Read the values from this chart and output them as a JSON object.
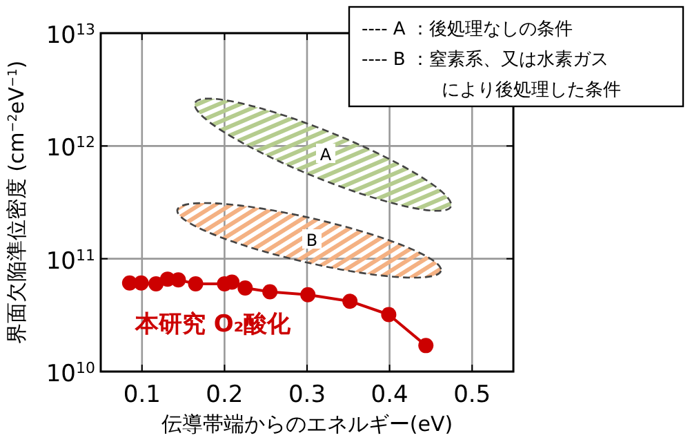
{
  "chart_data": {
    "type": "line",
    "xlabel": "伝導帯端からのエネルギー(eV)",
    "ylabel": "界面欠陥準位密度 (cm$^{−2}$eV$^{−1}$)",
    "log": "y",
    "grid": true,
    "legend": false,
    "marker": "circle",
    "line_style": "solid",
    "xlim": [
      0.05,
      0.55
    ],
    "xticks": [
      0.1,
      0.2,
      0.3,
      0.4,
      0.5
    ],
    "ylim": [
      10000000000.0,
      10000000000000.0
    ],
    "yticks": [
      {
        "value": 10000000000.0,
        "label": "10$^{10}$"
      },
      {
        "value": 100000000000.0,
        "label": "10$^{11}$"
      },
      {
        "value": 1000000000000.0,
        "label": "10$^{12}$"
      },
      {
        "value": 10000000000000.0,
        "label": "10$^{13}$"
      }
    ],
    "series": [
      {
        "name": "本研究 O₂酸化",
        "color": "#cc0000",
        "x": [
          0.085,
          0.099,
          0.117,
          0.131,
          0.144,
          0.165,
          0.2,
          0.209,
          0.225,
          0.255,
          0.301,
          0.352,
          0.399,
          0.444
        ],
        "values": [
          61000000000.0,
          61000000000.0,
          60000000000.0,
          66000000000.0,
          65000000000.0,
          60000000000.0,
          60000000000.0,
          62000000000.0,
          55000000000.0,
          51000000000.0,
          48000000000.0,
          42000000000.0,
          32000000000.0,
          17000000000.0
        ]
      }
    ],
    "annotations": [
      "A",
      "B",
      "---- A ：後処理なしの条件",
      "---- B ：窒素系、又は水素ガス",
      "により後処理した条件"
    ]
  }
}
